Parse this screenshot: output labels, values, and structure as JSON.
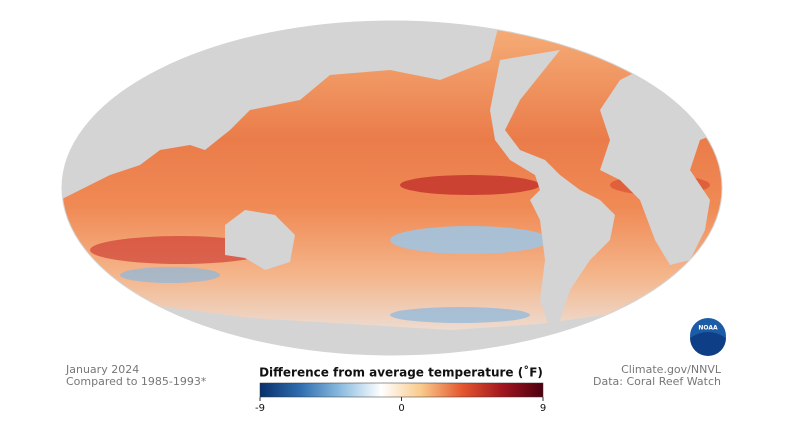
{
  "map": {
    "caption": [
      "January 2024",
      "Compared to 1985-1993*"
    ],
    "credits": [
      "Climate.gov/NNVL",
      "Data: Coral Reef Watch"
    ],
    "logo": "NOAA",
    "legend": {
      "title": "Difference from average temperature (˚F)",
      "range": [
        -9,
        9
      ],
      "ticks": [
        -9,
        0,
        9
      ],
      "colors": [
        "#08306b",
        "#2f6eb0",
        "#8cbde0",
        "#ffffff",
        "#f9c98a",
        "#e4572e",
        "#a1161f",
        "#4d0010"
      ]
    }
  }
}
